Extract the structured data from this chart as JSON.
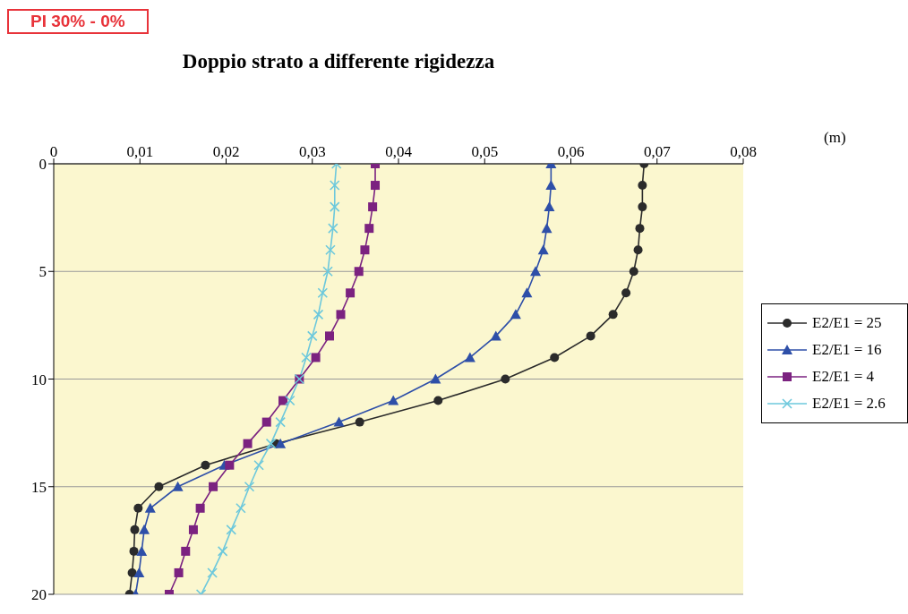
{
  "chart_data": {
    "type": "line",
    "title": "Doppio strato a differente rigidezza",
    "xlabel": "(m)",
    "annotations": [
      "PI 30% - 0%"
    ],
    "xlim": [
      0,
      0.08
    ],
    "xticks": [
      0,
      {
        "value": 0.01,
        "label": "0,01"
      },
      {
        "value": 0.02,
        "label": "0,02"
      },
      {
        "value": 0.03,
        "label": "0,03"
      },
      {
        "value": 0.04,
        "label": "0,04"
      },
      {
        "value": 0.05,
        "label": "0,05"
      },
      {
        "value": 0.06,
        "label": "0,06"
      },
      {
        "value": 0.07,
        "label": "0,07"
      },
      {
        "value": 0.08,
        "label": "0,08"
      }
    ],
    "ylim": [
      20,
      0
    ],
    "yticks": [
      0,
      5,
      10,
      15,
      20
    ],
    "grid": "y",
    "legend": "right",
    "series": [
      {
        "name": "E2/E1 = 25",
        "color": "#2b2b2b",
        "marker": "circle",
        "x": [
          0.0685,
          0.0683,
          0.0683,
          0.068,
          0.0678,
          0.0673,
          0.0664,
          0.0649,
          0.0623,
          0.0581,
          0.0524,
          0.0446,
          0.0355,
          0.0258,
          0.0176,
          0.0122,
          0.0098,
          0.0094,
          0.0093,
          0.0091,
          0.0088
        ],
        "values": [
          0,
          1,
          2,
          3,
          4,
          5,
          6,
          7,
          8,
          9,
          10,
          11,
          12,
          13,
          14,
          15,
          16,
          17,
          18,
          19,
          20
        ]
      },
      {
        "name": "E2/E1 = 16",
        "color": "#2e4fa8",
        "marker": "triangle",
        "x": [
          0.0577,
          0.0577,
          0.0575,
          0.0572,
          0.0568,
          0.0559,
          0.0549,
          0.0536,
          0.0513,
          0.0483,
          0.0443,
          0.0394,
          0.0331,
          0.0263,
          0.0198,
          0.0144,
          0.0112,
          0.0105,
          0.0102,
          0.0099,
          0.0095
        ],
        "values": [
          0,
          1,
          2,
          3,
          4,
          5,
          6,
          7,
          8,
          9,
          10,
          11,
          12,
          13,
          14,
          15,
          16,
          17,
          18,
          19,
          20
        ]
      },
      {
        "name": "E2/E1 = 4",
        "color": "#7b2280",
        "marker": "square",
        "x": [
          0.0373,
          0.0373,
          0.037,
          0.0366,
          0.0361,
          0.0354,
          0.0344,
          0.0333,
          0.032,
          0.0304,
          0.0285,
          0.0266,
          0.0247,
          0.0225,
          0.0204,
          0.0185,
          0.017,
          0.0162,
          0.0153,
          0.0145,
          0.0134
        ],
        "values": [
          0,
          1,
          2,
          3,
          4,
          5,
          6,
          7,
          8,
          9,
          10,
          11,
          12,
          13,
          14,
          15,
          16,
          17,
          18,
          19,
          20
        ]
      },
      {
        "name": "E2/E1 = 2.6",
        "color": "#6cc8dc",
        "marker": "cross",
        "x": [
          0.0328,
          0.0326,
          0.0326,
          0.0324,
          0.0321,
          0.0318,
          0.0312,
          0.0307,
          0.03,
          0.0293,
          0.0285,
          0.0274,
          0.0263,
          0.0252,
          0.0238,
          0.0227,
          0.0217,
          0.0206,
          0.0196,
          0.0184,
          0.0171
        ],
        "values": [
          0,
          1,
          2,
          3,
          4,
          5,
          6,
          7,
          8,
          9,
          10,
          11,
          12,
          13,
          14,
          15,
          16,
          17,
          18,
          19,
          20
        ]
      }
    ]
  }
}
